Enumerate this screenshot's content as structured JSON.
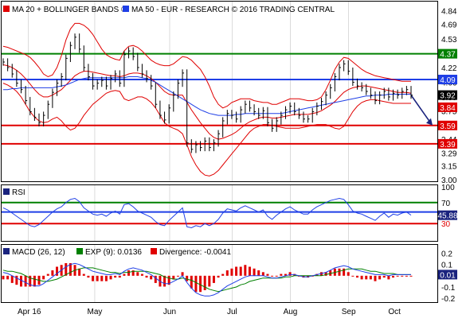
{
  "colors": {
    "red": "#e00000",
    "blue": "#1f3fe6",
    "green": "#008000",
    "price": "#000000",
    "navy": "#1a237e",
    "grid": "#cccccc",
    "macd_line": "#1f3fe6",
    "exp_line": "#008000",
    "divergence": "#e00000"
  },
  "chart_data": [
    {
      "type": "line",
      "panel": "price",
      "legend": [
        {
          "name": "MA 20 + BOLLINGER BANDS",
          "color": "#e00000",
          "symbol": "®"
        },
        {
          "name": "MA 50 - EUR - RESEARCH © 2016 TRADING CENTRAL",
          "color": "#1f3fe6",
          "symbol": ""
        }
      ],
      "y_ticks": [
        "4.84",
        "4.69",
        "4.53",
        "4.37",
        "4.22",
        "4.06",
        "3.90",
        "3.75",
        "3.59",
        "3.44",
        "3.29",
        "3.15",
        "3.00"
      ],
      "ylim": [
        3.0,
        4.92
      ],
      "x_labels": [
        "Apr 16",
        "May",
        "Jun",
        "Jul",
        "Aug",
        "Sep",
        "Oct"
      ],
      "levels": [
        {
          "value": 4.37,
          "label": "4.37",
          "color": "#008000"
        },
        {
          "value": 4.09,
          "label": "4.09",
          "color": "#1f3fe6"
        },
        {
          "value": 3.59,
          "label": "3.59",
          "color": "#e00000"
        },
        {
          "value": 3.39,
          "label": "3.39",
          "color": "#e00000"
        }
      ],
      "current_tags": [
        {
          "value": 3.92,
          "label": "3.92",
          "color": "#000000"
        },
        {
          "value": 3.84,
          "label": "3.84",
          "color": "#e00000"
        }
      ],
      "projection": {
        "from": 3.92,
        "to": 3.59
      },
      "close": [
        4.28,
        4.22,
        4.15,
        4.05,
        3.98,
        3.86,
        3.74,
        3.68,
        3.62,
        3.7,
        3.82,
        3.95,
        4.05,
        4.12,
        4.32,
        4.46,
        4.55,
        4.42,
        4.22,
        4.12,
        4.02,
        4.05,
        4.08,
        4.02,
        4.1,
        4.15,
        4.05,
        4.36,
        4.4,
        4.34,
        4.22,
        4.15,
        4.1,
        4.02,
        3.82,
        3.7,
        3.65,
        3.78,
        3.92,
        4.05,
        4.16,
        3.4,
        3.33,
        3.38,
        3.35,
        3.42,
        3.35,
        3.4,
        3.5,
        3.64,
        3.72,
        3.7,
        3.66,
        3.76,
        3.82,
        3.78,
        3.74,
        3.7,
        3.75,
        3.62,
        3.56,
        3.64,
        3.7,
        3.76,
        3.8,
        3.74,
        3.7,
        3.66,
        3.66,
        3.74,
        3.8,
        3.85,
        3.92,
        4.0,
        4.12,
        4.22,
        4.26,
        4.18,
        4.06,
        4.02,
        4.0,
        3.96,
        3.92,
        3.86,
        3.92,
        3.96,
        3.9,
        3.94,
        3.92,
        3.96,
        3.98,
        3.92
      ],
      "ma20": [
        4.25,
        4.24,
        4.22,
        4.19,
        4.15,
        4.1,
        4.04,
        3.98,
        3.93,
        3.9,
        3.9,
        3.92,
        3.95,
        3.98,
        4.03,
        4.08,
        4.13,
        4.16,
        4.18,
        4.18,
        4.17,
        4.16,
        4.15,
        4.14,
        4.13,
        4.13,
        4.12,
        4.13,
        4.15,
        4.16,
        4.16,
        4.15,
        4.13,
        4.1,
        4.06,
        4.01,
        3.96,
        3.93,
        3.92,
        3.92,
        3.92,
        3.84,
        3.76,
        3.69,
        3.62,
        3.56,
        3.5,
        3.46,
        3.44,
        3.45,
        3.47,
        3.49,
        3.52,
        3.56,
        3.6,
        3.63,
        3.65,
        3.67,
        3.68,
        3.68,
        3.67,
        3.67,
        3.68,
        3.69,
        3.7,
        3.71,
        3.71,
        3.71,
        3.71,
        3.72,
        3.73,
        3.75,
        3.78,
        3.81,
        3.85,
        3.9,
        3.95,
        3.98,
        4.0,
        4.01,
        4.02,
        4.02,
        4.01,
        4.0,
        3.99,
        3.98,
        3.97,
        3.96,
        3.95,
        3.95,
        3.95,
        3.94
      ],
      "upper": [
        4.45,
        4.44,
        4.42,
        4.4,
        4.38,
        4.36,
        4.33,
        4.28,
        4.22,
        4.15,
        4.12,
        4.14,
        4.22,
        4.35,
        4.52,
        4.64,
        4.7,
        4.7,
        4.68,
        4.64,
        4.58,
        4.5,
        4.42,
        4.36,
        4.33,
        4.31,
        4.3,
        4.4,
        4.45,
        4.46,
        4.44,
        4.4,
        4.35,
        4.3,
        4.27,
        4.25,
        4.24,
        4.24,
        4.26,
        4.3,
        4.34,
        4.33,
        4.3,
        4.25,
        4.2,
        4.12,
        4.02,
        3.9,
        3.82,
        3.78,
        3.8,
        3.84,
        3.86,
        3.88,
        3.88,
        3.88,
        3.86,
        3.85,
        3.84,
        3.84,
        3.82,
        3.82,
        3.84,
        3.86,
        3.88,
        3.88,
        3.88,
        3.87,
        3.86,
        3.86,
        3.87,
        3.9,
        3.98,
        4.08,
        4.2,
        4.28,
        4.33,
        4.32,
        4.28,
        4.24,
        4.2,
        4.17,
        4.15,
        4.13,
        4.12,
        4.11,
        4.1,
        4.09,
        4.08,
        4.07,
        4.07,
        4.07
      ],
      "lower": [
        4.05,
        4.03,
        4.0,
        3.96,
        3.9,
        3.82,
        3.74,
        3.68,
        3.64,
        3.62,
        3.63,
        3.66,
        3.68,
        3.64,
        3.58,
        3.54,
        3.56,
        3.62,
        3.7,
        3.76,
        3.82,
        3.86,
        3.9,
        3.94,
        3.96,
        3.97,
        3.96,
        3.88,
        3.86,
        3.88,
        3.9,
        3.9,
        3.88,
        3.84,
        3.78,
        3.7,
        3.62,
        3.58,
        3.56,
        3.54,
        3.5,
        3.38,
        3.25,
        3.16,
        3.09,
        3.05,
        3.04,
        3.06,
        3.1,
        3.16,
        3.22,
        3.28,
        3.34,
        3.4,
        3.46,
        3.52,
        3.56,
        3.58,
        3.6,
        3.6,
        3.59,
        3.58,
        3.57,
        3.56,
        3.56,
        3.56,
        3.56,
        3.57,
        3.58,
        3.59,
        3.6,
        3.6,
        3.6,
        3.58,
        3.56,
        3.55,
        3.58,
        3.66,
        3.74,
        3.8,
        3.84,
        3.86,
        3.87,
        3.87,
        3.86,
        3.85,
        3.84,
        3.83,
        3.83,
        3.83,
        3.83,
        3.83
      ],
      "ma50": [
        3.98,
        3.98,
        3.99,
        3.99,
        4.0,
        4.0,
        4.0,
        4.0,
        4.0,
        4.0,
        4.0,
        4.0,
        4.01,
        4.02,
        4.03,
        4.05,
        4.07,
        4.09,
        4.1,
        4.11,
        4.11,
        4.11,
        4.11,
        4.11,
        4.11,
        4.11,
        4.11,
        4.11,
        4.12,
        4.12,
        4.12,
        4.11,
        4.1,
        4.08,
        4.06,
        4.03,
        4.0,
        3.97,
        3.94,
        3.91,
        3.88,
        3.85,
        3.82,
        3.79,
        3.76,
        3.74,
        3.72,
        3.71,
        3.7,
        3.7,
        3.7,
        3.7,
        3.71,
        3.71,
        3.72,
        3.72,
        3.72,
        3.72,
        3.72,
        3.72,
        3.72,
        3.72,
        3.72,
        3.73,
        3.74,
        3.75,
        3.76,
        3.77,
        3.78,
        3.79,
        3.8,
        3.81,
        3.82,
        3.83,
        3.84,
        3.85,
        3.86,
        3.87,
        3.88,
        3.89,
        3.9,
        3.91,
        3.91,
        3.92,
        3.92,
        3.92,
        3.93,
        3.93,
        3.93,
        3.93,
        3.93,
        3.93
      ]
    },
    {
      "type": "line",
      "panel": "rsi",
      "legend": [
        {
          "name": "RSI",
          "color": "#1a237e"
        }
      ],
      "y_ticks": [
        "100",
        "70",
        "50",
        "30"
      ],
      "ylim": [
        0,
        100
      ],
      "levels": [
        {
          "value": 70,
          "color": "#008000"
        },
        {
          "value": 52,
          "color": "#1f3fe6"
        },
        {
          "value": 30,
          "color": "#e00000"
        }
      ],
      "current_tag": {
        "value": 45.88,
        "label": "45.88",
        "color": "#1a237e"
      },
      "values": [
        60,
        56,
        50,
        44,
        38,
        32,
        26,
        24,
        28,
        36,
        44,
        52,
        58,
        62,
        70,
        76,
        78,
        72,
        60,
        54,
        48,
        46,
        48,
        44,
        50,
        54,
        48,
        66,
        68,
        62,
        54,
        50,
        46,
        42,
        34,
        28,
        26,
        36,
        44,
        52,
        60,
        24,
        22,
        26,
        24,
        30,
        26,
        30,
        38,
        50,
        58,
        56,
        54,
        60,
        64,
        60,
        56,
        52,
        56,
        44,
        38,
        46,
        52,
        58,
        62,
        56,
        52,
        48,
        48,
        56,
        62,
        66,
        70,
        74,
        76,
        78,
        76,
        66,
        54,
        50,
        48,
        44,
        40,
        36,
        44,
        50,
        42,
        48,
        46,
        50,
        52,
        46
      ]
    },
    {
      "type": "line",
      "panel": "macd",
      "legend": [
        {
          "name": "MACD (26, 12)",
          "color": "#1a237e"
        },
        {
          "name": "EXP (9): 0.0136",
          "color": "#008000"
        },
        {
          "name": "Divergence: -0.0041",
          "color": "#e00000"
        }
      ],
      "y_ticks": [
        "0.2",
        "0.1",
        "0.0",
        "-0.1",
        "-0.2"
      ],
      "ylim": [
        -0.22,
        0.26
      ],
      "current_tag": {
        "value": 0.01,
        "label": "0.01",
        "color": "#1a237e"
      },
      "macd": [
        0.03,
        0.02,
        0.0,
        -0.02,
        -0.04,
        -0.06,
        -0.08,
        -0.09,
        -0.09,
        -0.07,
        -0.04,
        -0.01,
        0.02,
        0.05,
        0.08,
        0.1,
        0.11,
        0.1,
        0.08,
        0.06,
        0.04,
        0.03,
        0.02,
        0.01,
        0.01,
        0.02,
        0.01,
        0.04,
        0.06,
        0.07,
        0.06,
        0.05,
        0.03,
        0.01,
        -0.02,
        -0.05,
        -0.07,
        -0.07,
        -0.05,
        -0.03,
        0.0,
        -0.06,
        -0.11,
        -0.15,
        -0.17,
        -0.18,
        -0.18,
        -0.17,
        -0.15,
        -0.12,
        -0.09,
        -0.07,
        -0.05,
        -0.03,
        -0.01,
        0.0,
        0.0,
        0.0,
        0.0,
        -0.01,
        -0.02,
        -0.02,
        -0.01,
        0.0,
        0.01,
        0.01,
        0.0,
        -0.01,
        -0.01,
        0.0,
        0.01,
        0.02,
        0.03,
        0.05,
        0.07,
        0.08,
        0.09,
        0.08,
        0.06,
        0.05,
        0.04,
        0.03,
        0.02,
        0.01,
        0.01,
        0.01,
        0.0,
        0.01,
        0.01,
        0.01,
        0.01,
        0.01
      ],
      "exp": [
        0.05,
        0.04,
        0.04,
        0.03,
        0.02,
        0.0,
        -0.02,
        -0.03,
        -0.04,
        -0.05,
        -0.05,
        -0.04,
        -0.03,
        -0.01,
        0.01,
        0.03,
        0.05,
        0.06,
        0.07,
        0.07,
        0.07,
        0.06,
        0.05,
        0.04,
        0.03,
        0.03,
        0.02,
        0.03,
        0.03,
        0.04,
        0.04,
        0.04,
        0.04,
        0.03,
        0.02,
        0.01,
        -0.01,
        -0.02,
        -0.03,
        -0.03,
        -0.02,
        -0.03,
        -0.04,
        -0.06,
        -0.08,
        -0.1,
        -0.12,
        -0.13,
        -0.14,
        -0.13,
        -0.12,
        -0.11,
        -0.1,
        -0.08,
        -0.07,
        -0.05,
        -0.04,
        -0.03,
        -0.02,
        -0.02,
        -0.02,
        -0.02,
        -0.02,
        -0.01,
        -0.01,
        0.0,
        0.0,
        0.0,
        0.0,
        0.0,
        0.0,
        0.0,
        0.01,
        0.02,
        0.03,
        0.04,
        0.05,
        0.06,
        0.06,
        0.06,
        0.06,
        0.05,
        0.04,
        0.04,
        0.03,
        0.02,
        0.02,
        0.02,
        0.01,
        0.01,
        0.01,
        0.01
      ]
    }
  ]
}
